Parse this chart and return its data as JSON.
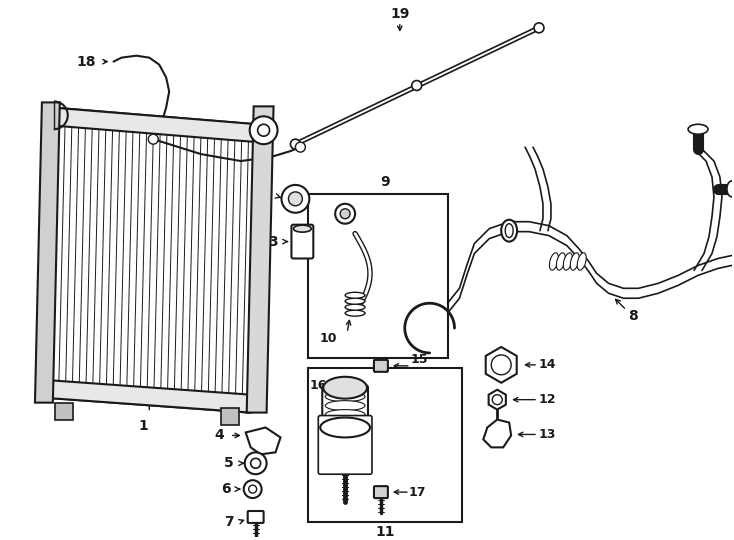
{
  "background_color": "#ffffff",
  "line_color": "#1a1a1a",
  "figsize": [
    7.34,
    5.4
  ],
  "dpi": 100
}
